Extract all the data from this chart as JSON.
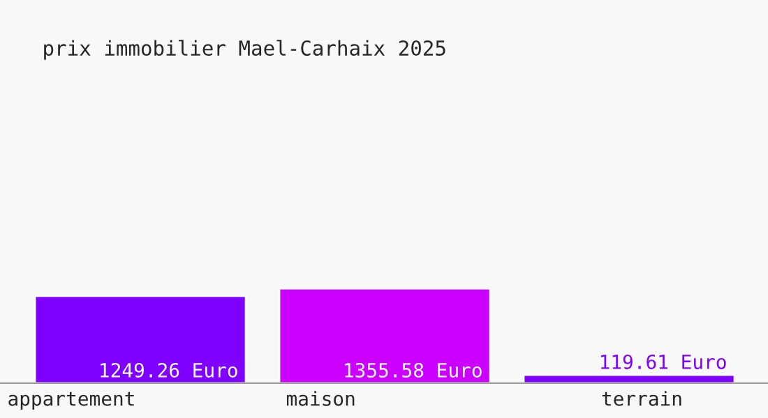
{
  "chart_data": {
    "type": "bar",
    "title": "prix immobilier Mael-Carhaix 2025",
    "categories": [
      "appartement",
      "maison",
      "terrain"
    ],
    "values": [
      1249.26,
      1355.58,
      119.61
    ],
    "colors": [
      "#8000ff",
      "#cc00ff",
      "#8000ff"
    ],
    "value_labels": [
      "1249.26 Euro",
      "1355.58 Euro",
      "119.61 Euro"
    ],
    "legend": false
  }
}
